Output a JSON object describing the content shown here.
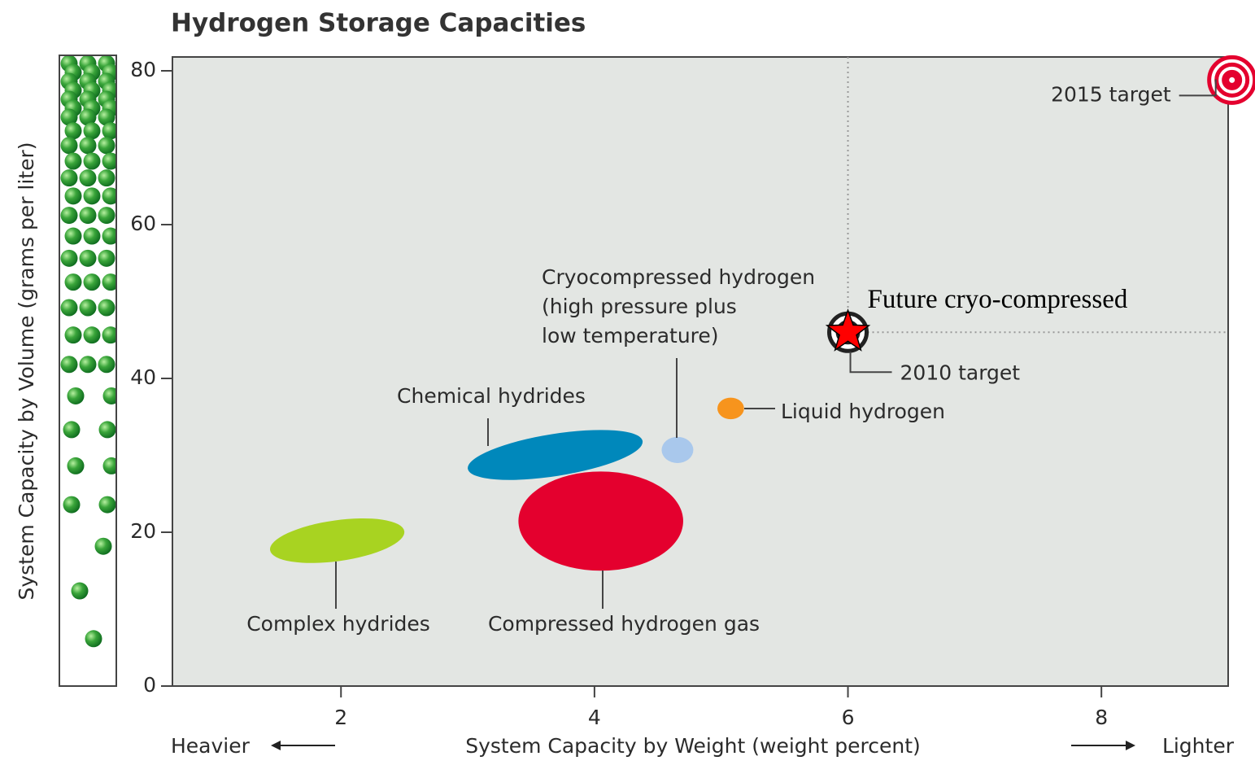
{
  "chart_data": {
    "type": "scatter",
    "title": "Hydrogen Storage Capacities",
    "xlabel": "System Capacity by Weight (weight percent)",
    "ylabel": "System Capacity by Volume (grams per liter)",
    "left_note": "Heavier",
    "right_note": "Lighter",
    "xlim": [
      0.67,
      9.0
    ],
    "ylim": [
      0,
      81.8
    ],
    "xticks": [
      2,
      4,
      6,
      8
    ],
    "yticks": [
      0,
      20,
      40,
      60,
      80
    ],
    "series": [
      {
        "name": "Complex hydrides",
        "color": "#a8d321",
        "x": [
          1.44,
          2.5
        ],
        "y": [
          16.0,
          21.8
        ]
      },
      {
        "name": "Chemical hydrides",
        "color": "#0088bb",
        "x": [
          3.0,
          4.38
        ],
        "y": [
          26.8,
          33.3
        ]
      },
      {
        "name": "Compressed hydrogen gas",
        "color": "#e4002e",
        "x": [
          3.4,
          4.7
        ],
        "y": [
          15.0,
          27.9
        ]
      },
      {
        "name": "Cryocompressed hydrogen\n(high pressure plus\nlow temperature)",
        "color": "#a9c8ec",
        "x": [
          4.53,
          4.78
        ],
        "y": [
          29.0,
          32.4
        ]
      },
      {
        "name": "Liquid hydrogen",
        "color": "#f7941d",
        "x": [
          4.97,
          5.18
        ],
        "y": [
          34.7,
          37.5
        ]
      }
    ],
    "points": [
      {
        "name": "2010 target",
        "color": "#222222",
        "x": 6,
        "y": 46
      },
      {
        "name": "2015 target",
        "color": "#e4002e",
        "x": 9.03,
        "y": 78.8
      },
      {
        "name": "Future cryo-compressed",
        "color": "#ff0000",
        "x": 6,
        "y": 46
      }
    ]
  }
}
